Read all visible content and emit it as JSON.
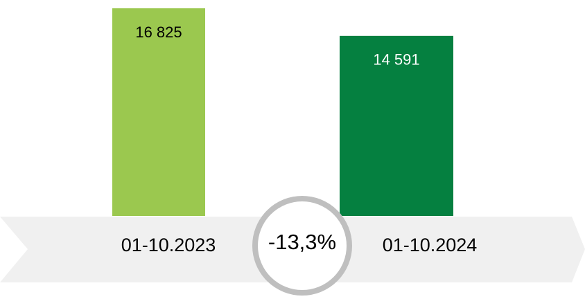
{
  "chart_data": {
    "type": "bar",
    "categories": [
      "01-10.2023",
      "01-10.2024"
    ],
    "values": [
      16825,
      14591
    ],
    "value_labels": [
      "16 825",
      "14 591"
    ],
    "colors": [
      "#9bc84f",
      "#058040"
    ],
    "annotation": "-13,3%"
  }
}
